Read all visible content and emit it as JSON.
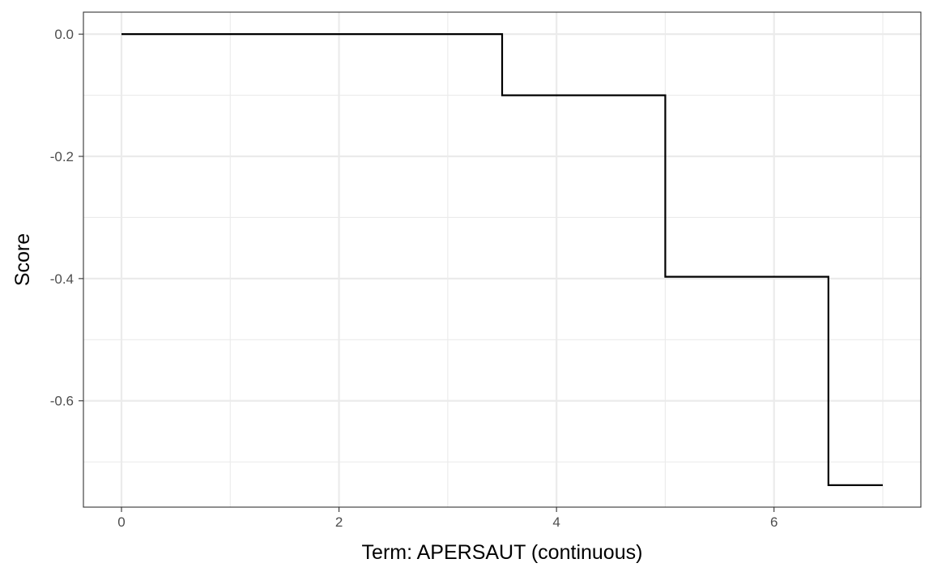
{
  "chart_data": {
    "type": "line",
    "subtype": "step",
    "title": "",
    "xlabel": "Term: APERSAUT (continuous)",
    "ylabel": "Score",
    "xlim": [
      -0.35,
      7.35
    ],
    "ylim": [
      -0.774,
      0.036
    ],
    "x_ticks": [
      0,
      2,
      4,
      6
    ],
    "x_tick_labels": [
      "0",
      "2",
      "4",
      "6"
    ],
    "x_minor_ticks": [
      1,
      3,
      5,
      7
    ],
    "y_ticks": [
      0.0,
      -0.2,
      -0.4,
      -0.6
    ],
    "y_tick_labels": [
      "0.0",
      "-0.2",
      "-0.4",
      "-0.6"
    ],
    "y_minor_ticks": [
      -0.1,
      -0.3,
      -0.5,
      -0.7
    ],
    "grid": true,
    "legend": "none",
    "series": [
      {
        "color": "#000000",
        "points": [
          {
            "x": 0.0,
            "y": 0.0
          },
          {
            "x": 3.5,
            "y": 0.0
          },
          {
            "x": 3.5,
            "y": -0.1
          },
          {
            "x": 5.0,
            "y": -0.1
          },
          {
            "x": 5.0,
            "y": -0.397
          },
          {
            "x": 6.5,
            "y": -0.397
          },
          {
            "x": 6.5,
            "y": -0.738
          },
          {
            "x": 7.0,
            "y": -0.738
          }
        ]
      }
    ]
  }
}
